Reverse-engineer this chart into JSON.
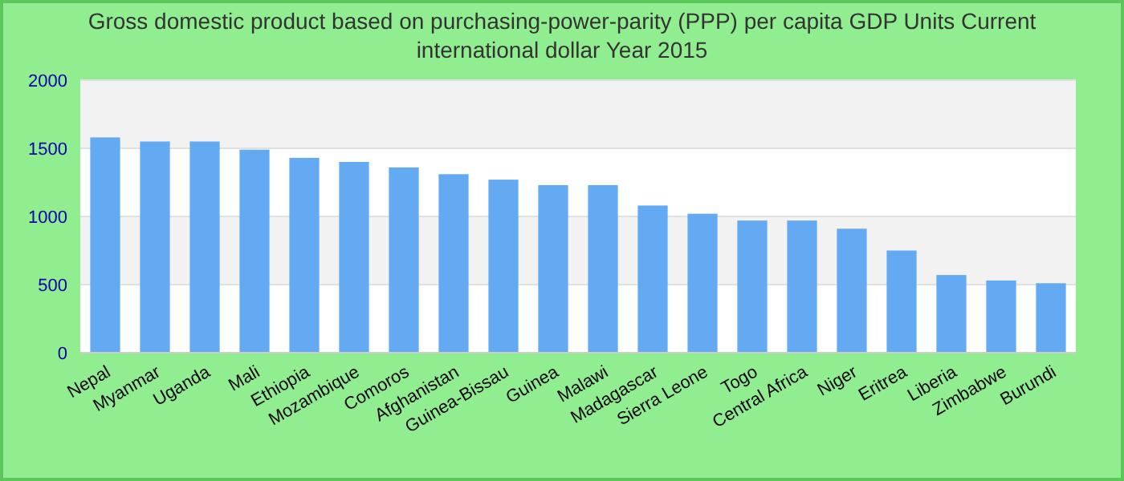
{
  "chart_data": {
    "type": "bar",
    "title": "Gross domestic product based on purchasing-power-parity (PPP) per capita GDP Units Current international dollar Year 2015",
    "categories": [
      "Nepal",
      "Myanmar",
      "Uganda",
      "Mali",
      "Ethiopia",
      "Mozambique",
      "Comoros",
      "Afghanistan",
      "Guinea-Bissau",
      "Guinea",
      "Malawi",
      "Madagascar",
      "Sierra Leone",
      "Togo",
      "Central Africa",
      "Niger",
      "Eritrea",
      "Liberia",
      "Zimbabwe",
      "Burundi"
    ],
    "values": [
      1580,
      1550,
      1550,
      1490,
      1430,
      1400,
      1360,
      1310,
      1270,
      1230,
      1230,
      1080,
      1020,
      970,
      970,
      910,
      750,
      570,
      530,
      510
    ],
    "color": "#63aaf3",
    "ylim": [
      0,
      2000
    ],
    "yticks": [
      0,
      500,
      1000,
      1500,
      2000
    ],
    "grid": "y"
  }
}
